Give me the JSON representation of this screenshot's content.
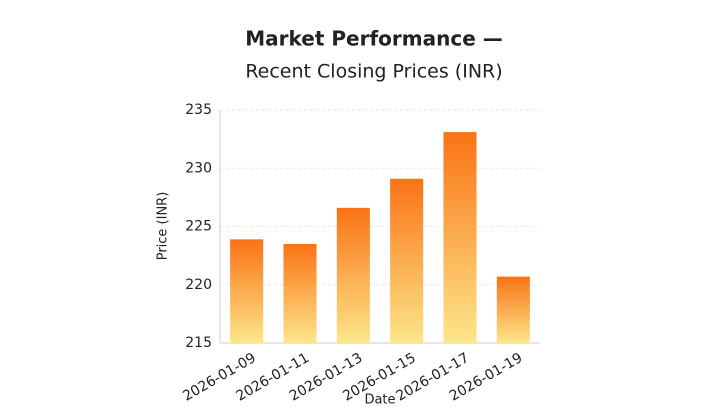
{
  "chart_data": {
    "type": "bar",
    "title": "Market Performance —",
    "subtitle": "Recent Closing Prices (INR)",
    "x_label": "Date",
    "y_label": "Price (INR)",
    "categories": [
      "2026-01-09",
      "2026-01-11",
      "2026-01-13",
      "2026-01-15",
      "2026-01-17",
      "2026-01-19"
    ],
    "values": [
      223.9,
      223.5,
      226.6,
      229.1,
      233.1,
      220.7
    ],
    "color": "#f97316",
    "color_bottom": "#fde68a",
    "ylim": [
      215,
      235
    ],
    "yticks": [
      215,
      220,
      225,
      230,
      235
    ],
    "grid": true
  }
}
